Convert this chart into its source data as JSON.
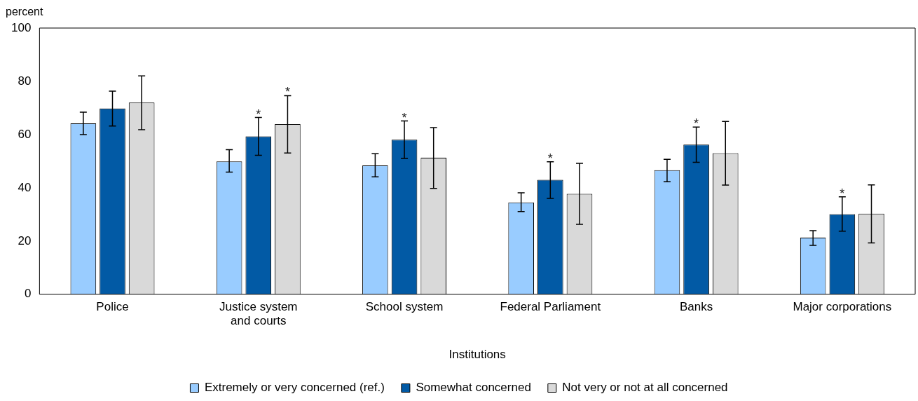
{
  "chart_data": {
    "type": "bar",
    "ylabel": "percent",
    "xlabel": "Institutions",
    "categories": [
      "Police",
      "Justice system and courts",
      "School system",
      "Federal Parliament",
      "Banks",
      "Major corporations"
    ],
    "series": [
      {
        "name": "Extremely or very concerned (ref.)",
        "color": "#99ccff",
        "values": [
          64.2,
          49.9,
          48.4,
          34.5,
          46.6,
          21.3
        ],
        "errors": [
          [
            60.0,
            68.4
          ],
          [
            45.9,
            54.3
          ],
          [
            44.1,
            52.8
          ],
          [
            31.1,
            38.1
          ],
          [
            42.3,
            50.7
          ],
          [
            18.4,
            23.9
          ]
        ]
      },
      {
        "name": "Somewhat concerned",
        "color": "#025aa5",
        "values": [
          69.8,
          59.3,
          58.1,
          43.0,
          56.2,
          30.1
        ],
        "errors": [
          [
            63.2,
            76.3
          ],
          [
            52.2,
            66.4
          ],
          [
            51.0,
            65.1
          ],
          [
            36.0,
            49.8
          ],
          [
            49.6,
            62.8
          ],
          [
            23.7,
            36.6
          ]
        ]
      },
      {
        "name": "Not very or not at all concerned",
        "color": "#d9d9d9",
        "values": [
          72.0,
          63.9,
          51.3,
          37.7,
          53.0,
          30.3
        ],
        "errors": [
          [
            61.8,
            82.0
          ],
          [
            53.1,
            74.6
          ],
          [
            39.8,
            62.6
          ],
          [
            26.3,
            49.2
          ],
          [
            41.0,
            64.9
          ],
          [
            19.3,
            41.1
          ]
        ]
      }
    ],
    "ylim": [
      0,
      100
    ],
    "yticks": [
      0,
      20,
      40,
      60,
      80,
      100
    ],
    "grid": false,
    "legend": "bottom",
    "annotations": [
      {
        "text": "*",
        "x": "Justice system and courts",
        "y": 59.3
      },
      {
        "text": "*",
        "x": "Justice system and courts",
        "y": 63.9
      },
      {
        "text": "*",
        "x": "School system",
        "y": 58.1
      },
      {
        "text": "*",
        "x": "Federal Parliament",
        "y": 43.0
      },
      {
        "text": "*",
        "x": "Banks",
        "y": 56.2
      },
      {
        "text": "*",
        "x": "Major corporations",
        "y": 30.1
      }
    ]
  }
}
